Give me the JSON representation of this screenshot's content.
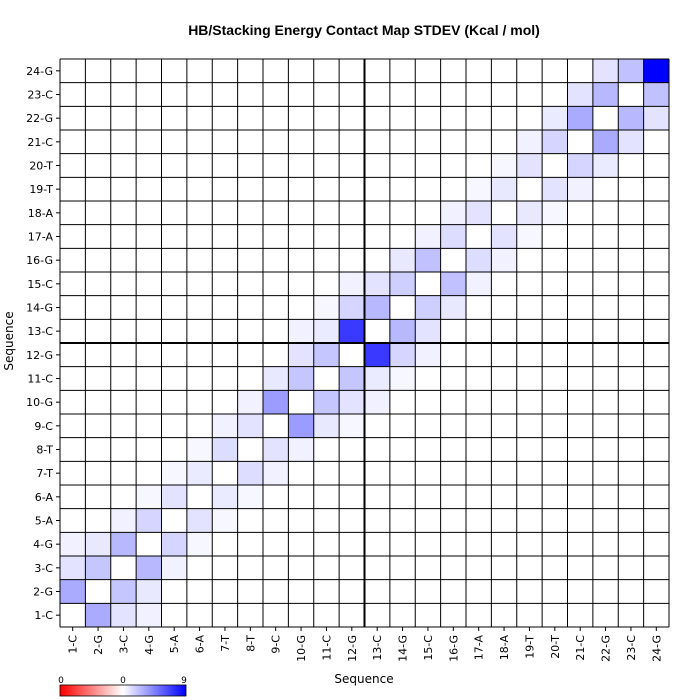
{
  "chart_data": {
    "type": "heatmap",
    "title": "HB/Stacking Energy Contact Map STDEV (Kcal / mol)",
    "xlabel": "Sequence",
    "ylabel": "Sequence",
    "labels": [
      "1-C",
      "2-G",
      "3-C",
      "4-G",
      "5-A",
      "6-A",
      "7-T",
      "8-T",
      "9-C",
      "10-G",
      "11-C",
      "12-G",
      "13-C",
      "14-G",
      "15-C",
      "16-G",
      "17-A",
      "18-A",
      "19-T",
      "20-T",
      "21-C",
      "22-G",
      "23-C",
      "24-G"
    ],
    "colorbar": {
      "min": 0,
      "max": 9,
      "ticks": [
        "0",
        "0",
        "9"
      ],
      "colors": [
        "#ff0000",
        "#ffffff",
        "#0000ff"
      ]
    },
    "strand_divider_after": 12,
    "cells": [
      [
        1,
        1,
        0
      ],
      [
        1,
        2,
        3
      ],
      [
        1,
        3,
        1
      ],
      [
        1,
        4,
        0.5
      ],
      [
        2,
        1,
        3
      ],
      [
        2,
        2,
        0
      ],
      [
        2,
        3,
        2
      ],
      [
        2,
        4,
        0.8
      ],
      [
        3,
        1,
        1
      ],
      [
        3,
        2,
        2
      ],
      [
        3,
        3,
        0
      ],
      [
        3,
        4,
        2.5
      ],
      [
        3,
        5,
        0.5
      ],
      [
        4,
        1,
        0.5
      ],
      [
        4,
        2,
        0.8
      ],
      [
        4,
        3,
        2.5
      ],
      [
        4,
        4,
        0
      ],
      [
        4,
        5,
        1.5
      ],
      [
        4,
        6,
        0.3
      ],
      [
        5,
        3,
        0.5
      ],
      [
        5,
        4,
        1.5
      ],
      [
        5,
        5,
        0
      ],
      [
        5,
        6,
        1
      ],
      [
        5,
        7,
        0.3
      ],
      [
        6,
        4,
        0.3
      ],
      [
        6,
        5,
        1
      ],
      [
        6,
        6,
        0
      ],
      [
        6,
        7,
        0.7
      ],
      [
        6,
        8,
        0.3
      ],
      [
        7,
        5,
        0.3
      ],
      [
        7,
        6,
        0.7
      ],
      [
        7,
        7,
        0
      ],
      [
        7,
        8,
        1.2
      ],
      [
        7,
        9,
        0.5
      ],
      [
        8,
        6,
        0.3
      ],
      [
        8,
        7,
        1.2
      ],
      [
        8,
        8,
        0
      ],
      [
        8,
        9,
        1
      ],
      [
        8,
        10,
        0.5
      ],
      [
        9,
        7,
        0.5
      ],
      [
        9,
        8,
        1
      ],
      [
        9,
        9,
        0
      ],
      [
        9,
        10,
        3.5
      ],
      [
        9,
        11,
        0.8
      ],
      [
        9,
        12,
        0.3
      ],
      [
        10,
        8,
        0.5
      ],
      [
        10,
        9,
        3.5
      ],
      [
        10,
        10,
        0
      ],
      [
        10,
        11,
        2
      ],
      [
        10,
        12,
        1
      ],
      [
        10,
        13,
        0.5
      ],
      [
        11,
        9,
        0.8
      ],
      [
        11,
        10,
        2
      ],
      [
        11,
        11,
        0
      ],
      [
        11,
        12,
        2
      ],
      [
        11,
        13,
        0.7
      ],
      [
        11,
        14,
        0.3
      ],
      [
        12,
        10,
        1
      ],
      [
        12,
        11,
        2
      ],
      [
        12,
        12,
        0
      ],
      [
        12,
        13,
        7
      ],
      [
        12,
        14,
        1.5
      ],
      [
        12,
        15,
        0.5
      ],
      [
        13,
        10,
        0.5
      ],
      [
        13,
        11,
        0.7
      ],
      [
        13,
        12,
        7
      ],
      [
        13,
        13,
        0
      ],
      [
        13,
        14,
        2.5
      ],
      [
        13,
        15,
        1
      ],
      [
        14,
        11,
        0.3
      ],
      [
        14,
        12,
        1.5
      ],
      [
        14,
        13,
        2.5
      ],
      [
        14,
        14,
        0
      ],
      [
        14,
        15,
        1.7
      ],
      [
        14,
        16,
        0.8
      ],
      [
        15,
        12,
        0.5
      ],
      [
        15,
        13,
        1
      ],
      [
        15,
        14,
        1.7
      ],
      [
        15,
        15,
        0
      ],
      [
        15,
        16,
        2.2
      ],
      [
        15,
        17,
        0.5
      ],
      [
        16,
        14,
        0.8
      ],
      [
        16,
        15,
        2.2
      ],
      [
        16,
        16,
        0
      ],
      [
        16,
        17,
        1.2
      ],
      [
        16,
        18,
        0.5
      ],
      [
        17,
        15,
        0.5
      ],
      [
        17,
        16,
        1.2
      ],
      [
        17,
        17,
        0
      ],
      [
        17,
        18,
        1
      ],
      [
        17,
        19,
        0.3
      ],
      [
        18,
        16,
        0.5
      ],
      [
        18,
        17,
        1
      ],
      [
        18,
        18,
        0
      ],
      [
        18,
        19,
        0.8
      ],
      [
        18,
        20,
        0.3
      ],
      [
        19,
        17,
        0.3
      ],
      [
        19,
        18,
        0.8
      ],
      [
        19,
        19,
        0
      ],
      [
        19,
        20,
        1
      ],
      [
        19,
        21,
        0.5
      ],
      [
        20,
        18,
        0.3
      ],
      [
        20,
        19,
        1
      ],
      [
        20,
        20,
        0
      ],
      [
        20,
        21,
        1.5
      ],
      [
        20,
        22,
        0.7
      ],
      [
        21,
        19,
        0.5
      ],
      [
        21,
        20,
        1.5
      ],
      [
        21,
        21,
        0
      ],
      [
        21,
        22,
        3
      ],
      [
        21,
        23,
        1
      ],
      [
        22,
        20,
        0.7
      ],
      [
        22,
        21,
        3
      ],
      [
        22,
        22,
        0
      ],
      [
        22,
        23,
        2.5
      ],
      [
        22,
        24,
        1
      ],
      [
        23,
        21,
        1
      ],
      [
        23,
        22,
        2.5
      ],
      [
        23,
        23,
        0
      ],
      [
        23,
        24,
        2.2
      ],
      [
        24,
        22,
        1
      ],
      [
        24,
        23,
        2.2
      ],
      [
        24,
        24,
        9
      ]
    ]
  }
}
